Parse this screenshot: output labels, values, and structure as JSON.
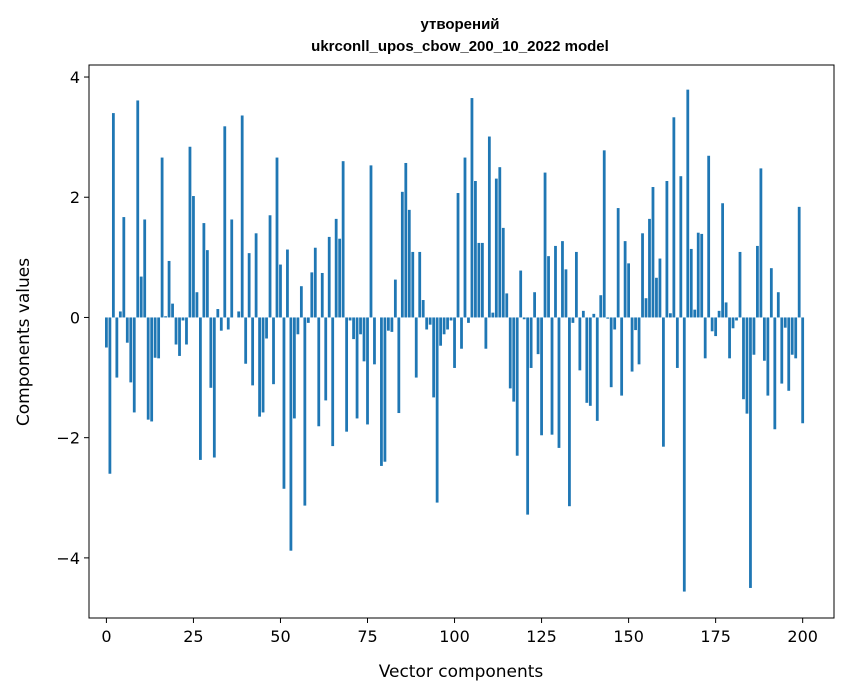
{
  "chart_data": {
    "type": "bar",
    "title": "утворений",
    "subtitle": "ukrconll_upos_cbow_200_10_2022 model",
    "xlabel": "Vector components",
    "ylabel": "Components values",
    "xlim": [
      -5,
      209
    ],
    "ylim": [
      -5.0,
      4.2
    ],
    "xticks": [
      0,
      25,
      50,
      75,
      100,
      125,
      150,
      175,
      200
    ],
    "yticks": [
      -4,
      -2,
      0,
      2,
      4
    ],
    "ytick_labels": [
      "−4",
      "−2",
      "0",
      "2",
      "4"
    ],
    "bar_color": "#1f77b4",
    "grid": false,
    "values": [
      -0.5,
      -2.6,
      3.4,
      -1.0,
      0.1,
      1.67,
      -0.42,
      -1.08,
      -1.58,
      3.61,
      0.68,
      1.63,
      -1.7,
      -1.73,
      -0.67,
      -0.68,
      2.66,
      0.02,
      0.94,
      0.23,
      -0.45,
      -0.64,
      -0.05,
      -0.45,
      2.84,
      2.02,
      0.42,
      -2.37,
      1.57,
      1.12,
      -1.17,
      -2.33,
      0.14,
      -0.22,
      3.18,
      -0.2,
      1.63,
      0.0,
      0.1,
      3.36,
      -0.77,
      1.07,
      -1.13,
      1.4,
      -1.65,
      -1.58,
      -0.35,
      1.7,
      -1.11,
      2.66,
      0.88,
      -2.85,
      1.13,
      -3.88,
      -1.68,
      -0.28,
      0.52,
      -3.13,
      -0.09,
      0.75,
      1.16,
      -1.81,
      0.74,
      -1.38,
      1.34,
      -2.14,
      1.64,
      1.31,
      2.6,
      -1.9,
      -0.05,
      -0.36,
      -1.68,
      -0.28,
      -0.73,
      -1.78,
      2.53,
      -0.78,
      0.0,
      -2.47,
      -2.4,
      -0.22,
      -0.24,
      0.63,
      -1.59,
      2.09,
      2.57,
      1.79,
      1.09,
      -1.0,
      1.09,
      0.29,
      -0.2,
      -0.12,
      -1.33,
      -3.08,
      -0.47,
      -0.28,
      -0.2,
      -0.05,
      -0.84,
      2.07,
      -0.52,
      2.66,
      -0.09,
      3.65,
      2.27,
      1.24,
      1.24,
      -0.52,
      3.01,
      0.08,
      2.31,
      2.5,
      1.49,
      0.4,
      -1.18,
      -1.4,
      -2.3,
      0.78,
      -0.03,
      -3.28,
      -0.84,
      0.42,
      -0.61,
      -1.96,
      2.41,
      1.02,
      -1.95,
      1.19,
      -2.17,
      1.27,
      0.8,
      -3.14,
      -0.09,
      1.09,
      -0.88,
      0.11,
      -1.42,
      -1.47,
      0.06,
      -1.72,
      0.37,
      2.78,
      -0.02,
      -1.16,
      -0.2,
      1.82,
      -1.3,
      1.27,
      0.9,
      -0.9,
      -0.21,
      -0.78,
      1.4,
      0.32,
      1.64,
      2.17,
      0.66,
      0.98,
      -2.15,
      2.27,
      0.07,
      3.33,
      -0.84,
      2.35,
      -4.56,
      3.79,
      1.14,
      0.13,
      1.41,
      1.39,
      -0.68,
      2.69,
      -0.23,
      -0.31,
      0.11,
      1.9,
      0.25,
      -0.68,
      -0.18,
      -0.05,
      1.09,
      -1.36,
      -1.6,
      -4.5,
      -0.62,
      1.19,
      2.48,
      -0.72,
      -1.3,
      0.82,
      -1.86,
      0.42,
      -1.1,
      -0.17,
      -1.22,
      -0.62,
      -0.68,
      1.84,
      -1.76
    ]
  }
}
